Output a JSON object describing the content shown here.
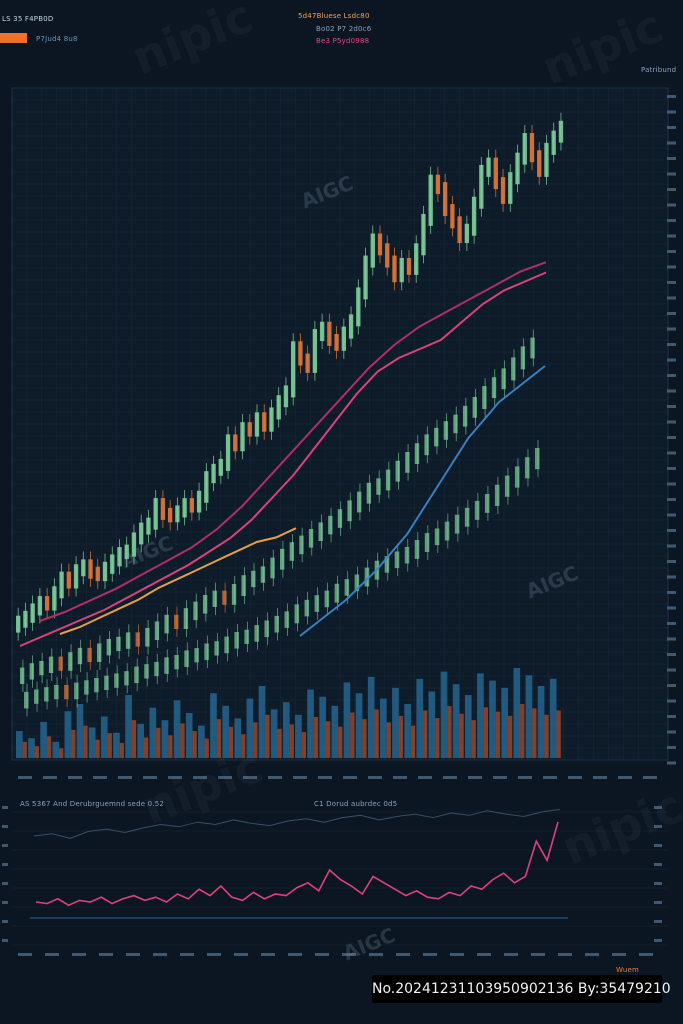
{
  "header": {
    "left_label": "LS 35 F4PB0D",
    "left_sub_label": "P7Jud4 8u8",
    "center_lines": [
      "5d47Bluese Lsdc80",
      "Bo02 P7 2d0c6",
      "Be3 P5yd0988"
    ],
    "right_label": "Patribund"
  },
  "lower_panel": {
    "left_title": "AS 5367 And Derubrguemnd sede 0.52",
    "center_title": "C1 Dorud aubrdec 0d5",
    "right_corner_label": "Wuem"
  },
  "watermarks": [
    "AIGC",
    "nipic"
  ],
  "footer": {
    "id_text": "No.20241231103950902136 By:35479210"
  },
  "colors": {
    "background": "#0c1622",
    "grid": "#1c3248",
    "candle_up": "#7ecf9a",
    "candle_down": "#e0783a",
    "ma_pink": "#e8457e",
    "ma_magenta": "#b8306a",
    "ma_orange": "#f2a64a",
    "ma_salmon": "#f06a6a",
    "line_white": "#d8e4ec",
    "line_blue": "#3b86c8",
    "volume_blue": "#2a6f9c",
    "volume_orange": "#d05a2a",
    "legend_swatch": "#f0702a"
  },
  "chart_data": [
    {
      "type": "candlestick",
      "title": "",
      "candles_main_close": [
        34,
        36,
        39,
        42,
        41,
        46,
        52,
        50,
        55,
        57,
        54,
        53,
        56,
        59,
        62,
        63,
        68,
        72,
        74,
        82,
        78,
        77,
        79,
        82,
        81,
        85,
        93,
        96,
        98,
        108,
        106,
        113,
        112,
        117,
        114,
        119,
        124,
        128,
        146,
        141,
        138,
        151,
        154,
        149,
        147,
        152,
        157,
        168,
        181,
        190,
        186,
        181,
        175,
        180,
        178,
        186,
        198,
        214,
        211,
        202,
        197,
        191,
        194,
        205,
        218,
        221,
        213,
        207,
        215,
        223,
        231,
        224,
        218,
        227,
        232,
        236
      ],
      "candles_secondary_close": [
        22,
        24,
        25,
        27,
        26,
        29,
        31,
        30,
        33,
        35,
        36,
        38,
        37,
        40,
        43,
        46,
        45,
        49,
        52,
        55,
        57,
        56,
        60,
        64,
        66,
        68,
        72,
        76,
        79,
        82,
        85,
        88,
        91,
        94,
        98,
        102,
        106,
        108,
        112,
        116,
        120,
        124,
        128,
        131,
        134,
        137,
        141,
        145,
        150,
        154,
        158,
        163,
        168,
        172
      ],
      "candles_tertiary_close": [
        14,
        15,
        16,
        17,
        16,
        18,
        19,
        20,
        21,
        22,
        23,
        25,
        26,
        27,
        29,
        30,
        32,
        33,
        35,
        36,
        38,
        40,
        41,
        43,
        45,
        47,
        49,
        52,
        54,
        56,
        58,
        61,
        63,
        65,
        68,
        71,
        73,
        75,
        77,
        80,
        83,
        85,
        88,
        91,
        94,
        97,
        100,
        104,
        108,
        112,
        116,
        120
      ],
      "lines": [
        {
          "color_key": "ma_pink",
          "values": [
            24,
            28,
            32,
            36,
            40,
            45,
            50,
            55,
            60,
            66,
            72,
            80,
            90,
            100,
            112,
            124,
            136,
            146,
            152,
            156,
            160,
            168,
            176,
            182,
            186,
            190
          ]
        },
        {
          "color_key": "ma_orange",
          "values": [
            20,
            23,
            27,
            31,
            35,
            40,
            44,
            48,
            52,
            56,
            60,
            62,
            66
          ]
        },
        {
          "color_key": "ma_magenta",
          "values": [
            30,
            34,
            39,
            44,
            50,
            56,
            62,
            70,
            80,
            92,
            104,
            116,
            128,
            140,
            150,
            158,
            164,
            170,
            176,
            182,
            186
          ]
        },
        {
          "color_key": "line_blue",
          "values": [
            8,
            12,
            16,
            20,
            25,
            30,
            36,
            42,
            50,
            58,
            66,
            74,
            80,
            86,
            90,
            94,
            98
          ]
        }
      ]
    },
    {
      "type": "bar",
      "title": "",
      "series": [
        {
          "values": [
            30,
            22,
            40,
            18,
            52,
            60,
            34,
            46,
            28,
            70,
            38,
            56,
            42,
            64,
            50,
            36,
            72,
            58,
            44,
            66,
            80,
            54,
            62,
            48,
            76,
            68,
            58,
            84,
            72,
            90,
            66,
            78,
            60,
            88,
            74,
            96,
            82,
            70,
            94,
            86,
            78,
            100,
            92,
            80,
            88
          ]
        }
      ]
    },
    {
      "type": "line",
      "title": "",
      "series": [
        {
          "values": [
            10,
            9,
            12,
            8,
            11,
            10,
            13,
            9,
            12,
            14,
            11,
            13,
            10,
            15,
            12,
            18,
            14,
            20,
            13,
            11,
            16,
            12,
            15,
            14,
            19,
            22,
            17,
            30,
            24,
            20,
            15,
            26,
            22,
            18,
            14,
            17,
            13,
            12,
            16,
            14,
            20,
            18,
            24,
            28,
            22,
            26,
            48,
            36,
            60
          ]
        },
        {
          "values": [
            60,
            62,
            58,
            64,
            66,
            63,
            67,
            70,
            68,
            72,
            70,
            74,
            71,
            69,
            73,
            75,
            72,
            76,
            78,
            74,
            77,
            79,
            76,
            80,
            78,
            82,
            79,
            77,
            81,
            83
          ]
        }
      ]
    }
  ]
}
